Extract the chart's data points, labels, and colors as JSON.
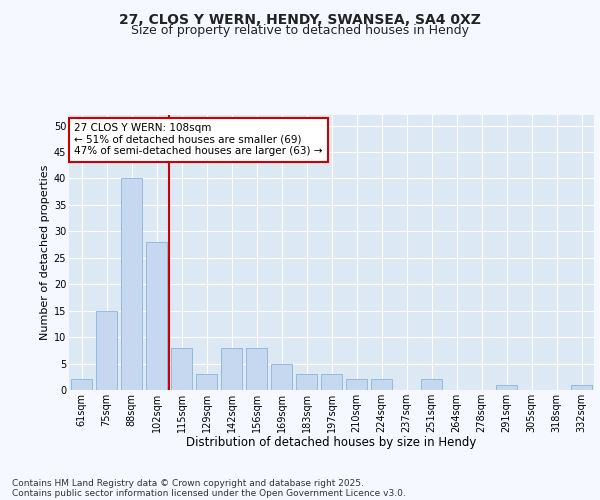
{
  "title_line1": "27, CLOS Y WERN, HENDY, SWANSEA, SA4 0XZ",
  "title_line2": "Size of property relative to detached houses in Hendy",
  "xlabel": "Distribution of detached houses by size in Hendy",
  "ylabel": "Number of detached properties",
  "categories": [
    "61sqm",
    "75sqm",
    "88sqm",
    "102sqm",
    "115sqm",
    "129sqm",
    "142sqm",
    "156sqm",
    "169sqm",
    "183sqm",
    "197sqm",
    "210sqm",
    "224sqm",
    "237sqm",
    "251sqm",
    "264sqm",
    "278sqm",
    "291sqm",
    "305sqm",
    "318sqm",
    "332sqm"
  ],
  "values": [
    2,
    15,
    40,
    28,
    8,
    3,
    8,
    8,
    5,
    3,
    3,
    2,
    2,
    0,
    2,
    0,
    0,
    1,
    0,
    0,
    1
  ],
  "bar_color": "#c5d8f0",
  "bar_edgecolor": "#8ab4d8",
  "bar_linewidth": 0.6,
  "marker_index": 3,
  "annotation_line1": "27 CLOS Y WERN: 108sqm",
  "annotation_line2": "← 51% of detached houses are smaller (69)",
  "annotation_line3": "47% of semi-detached houses are larger (63) →",
  "annotation_box_facecolor": "#ffffff",
  "annotation_box_edgecolor": "#cc0000",
  "marker_color": "#cc0000",
  "ylim": [
    0,
    52
  ],
  "yticks": [
    0,
    5,
    10,
    15,
    20,
    25,
    30,
    35,
    40,
    45,
    50
  ],
  "fig_facecolor": "#f5f8ff",
  "axes_facecolor": "#dde8f5",
  "grid_color": "#ffffff",
  "footer_line1": "Contains HM Land Registry data © Crown copyright and database right 2025.",
  "footer_line2": "Contains public sector information licensed under the Open Government Licence v3.0.",
  "title_fontsize": 10,
  "subtitle_fontsize": 9,
  "tick_fontsize": 7,
  "xlabel_fontsize": 8.5,
  "ylabel_fontsize": 8,
  "annotation_fontsize": 7.5,
  "footer_fontsize": 6.5
}
